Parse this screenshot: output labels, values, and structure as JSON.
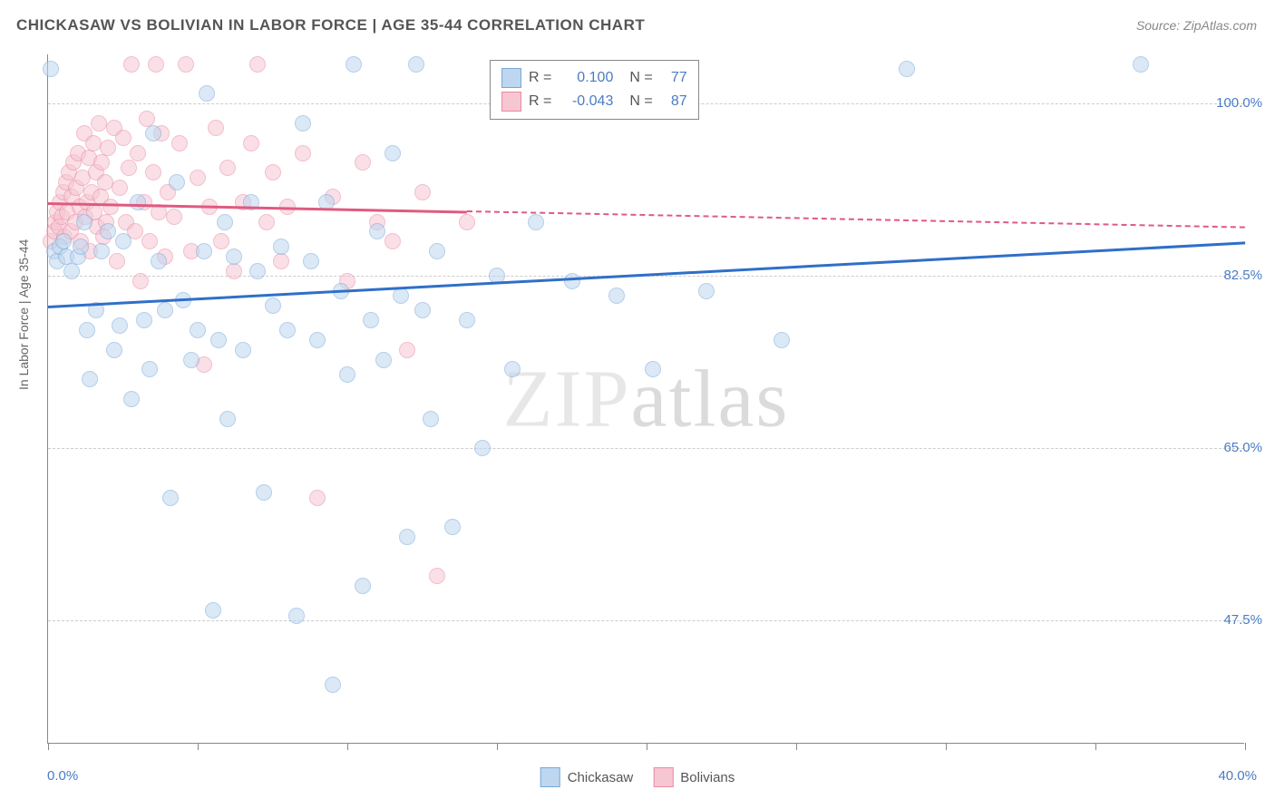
{
  "title": "CHICKASAW VS BOLIVIAN IN LABOR FORCE | AGE 35-44 CORRELATION CHART",
  "source": "Source: ZipAtlas.com",
  "y_axis_label": "In Labor Force | Age 35-44",
  "watermark_a": "ZIP",
  "watermark_b": "atlas",
  "chart": {
    "type": "scatter",
    "xlim": [
      0.0,
      40.0
    ],
    "ylim": [
      35.0,
      105.0
    ],
    "x_min_label": "0.0%",
    "x_max_label": "40.0%",
    "y_ticks": [
      {
        "v": 47.5,
        "label": "47.5%"
      },
      {
        "v": 65.0,
        "label": "65.0%"
      },
      {
        "v": 82.5,
        "label": "82.5%"
      },
      {
        "v": 100.0,
        "label": "100.0%"
      }
    ],
    "x_tick_positions": [
      0,
      5,
      10,
      15,
      20,
      25,
      30,
      35,
      40
    ],
    "background_color": "#ffffff",
    "grid_color": "#cccccc",
    "axis_color": "#888888",
    "marker_radius": 9,
    "marker_stroke_width": 1.5,
    "series": [
      {
        "name": "Chickasaw",
        "fill": "#bed6f0",
        "stroke": "#7aa8d8",
        "fill_opacity": 0.55,
        "trend": {
          "x1": 0,
          "y1": 79.5,
          "x2": 40,
          "y2": 86.0,
          "color": "#2f6fc9",
          "solid_until_x": 40
        },
        "points": [
          [
            0.1,
            103.5
          ],
          [
            0.2,
            85
          ],
          [
            0.3,
            84
          ],
          [
            0.4,
            85.5
          ],
          [
            0.5,
            86
          ],
          [
            0.6,
            84.5
          ],
          [
            0.8,
            83
          ],
          [
            1.0,
            84.5
          ],
          [
            1.1,
            85.5
          ],
          [
            1.2,
            88
          ],
          [
            1.3,
            77
          ],
          [
            1.4,
            72
          ],
          [
            1.6,
            79
          ],
          [
            1.8,
            85
          ],
          [
            2.0,
            87
          ],
          [
            2.2,
            75
          ],
          [
            2.4,
            77.5
          ],
          [
            2.5,
            86
          ],
          [
            2.8,
            70
          ],
          [
            3.0,
            90
          ],
          [
            3.2,
            78
          ],
          [
            3.4,
            73
          ],
          [
            3.5,
            97
          ],
          [
            3.7,
            84
          ],
          [
            3.9,
            79
          ],
          [
            4.1,
            60
          ],
          [
            4.3,
            92
          ],
          [
            4.5,
            80
          ],
          [
            4.8,
            74
          ],
          [
            5.0,
            77
          ],
          [
            5.2,
            85
          ],
          [
            5.3,
            101
          ],
          [
            5.5,
            48.5
          ],
          [
            5.7,
            76
          ],
          [
            5.9,
            88
          ],
          [
            6.0,
            68
          ],
          [
            6.2,
            84.5
          ],
          [
            6.5,
            75
          ],
          [
            6.8,
            90
          ],
          [
            7.0,
            83
          ],
          [
            7.2,
            60.5
          ],
          [
            7.5,
            79.5
          ],
          [
            7.8,
            85.5
          ],
          [
            8.0,
            77
          ],
          [
            8.3,
            48
          ],
          [
            8.5,
            98
          ],
          [
            8.8,
            84
          ],
          [
            9.0,
            76
          ],
          [
            9.3,
            90
          ],
          [
            9.5,
            41
          ],
          [
            9.8,
            81
          ],
          [
            10.0,
            72.5
          ],
          [
            10.2,
            104
          ],
          [
            10.5,
            51
          ],
          [
            10.8,
            78
          ],
          [
            11.0,
            87
          ],
          [
            11.2,
            74
          ],
          [
            11.5,
            95
          ],
          [
            11.8,
            80.5
          ],
          [
            12.0,
            56
          ],
          [
            12.3,
            104
          ],
          [
            12.5,
            79
          ],
          [
            12.8,
            68
          ],
          [
            13.0,
            85
          ],
          [
            13.5,
            57
          ],
          [
            14.0,
            78
          ],
          [
            14.5,
            65
          ],
          [
            15.0,
            82.5
          ],
          [
            15.5,
            73
          ],
          [
            16.3,
            88
          ],
          [
            17.5,
            82
          ],
          [
            19.0,
            80.5
          ],
          [
            20.2,
            73
          ],
          [
            22.0,
            81
          ],
          [
            24.5,
            76
          ],
          [
            28.7,
            103.5
          ],
          [
            36.5,
            104
          ]
        ]
      },
      {
        "name": "Bolivians",
        "fill": "#f6c6d2",
        "stroke": "#e88ba3",
        "fill_opacity": 0.55,
        "trend": {
          "x1": 0,
          "y1": 90.0,
          "x2": 40,
          "y2": 87.5,
          "color": "#e05a80",
          "solid_until_x": 14
        },
        "points": [
          [
            0.1,
            86
          ],
          [
            0.2,
            87
          ],
          [
            0.25,
            88
          ],
          [
            0.3,
            89
          ],
          [
            0.35,
            87.5
          ],
          [
            0.4,
            90
          ],
          [
            0.45,
            88.5
          ],
          [
            0.5,
            91
          ],
          [
            0.55,
            86.5
          ],
          [
            0.6,
            92
          ],
          [
            0.65,
            89
          ],
          [
            0.7,
            93
          ],
          [
            0.75,
            87
          ],
          [
            0.8,
            90.5
          ],
          [
            0.85,
            94
          ],
          [
            0.9,
            88
          ],
          [
            0.95,
            91.5
          ],
          [
            1.0,
            95
          ],
          [
            1.05,
            89.5
          ],
          [
            1.1,
            86
          ],
          [
            1.15,
            92.5
          ],
          [
            1.2,
            97
          ],
          [
            1.25,
            88.5
          ],
          [
            1.3,
            90
          ],
          [
            1.35,
            94.5
          ],
          [
            1.4,
            85
          ],
          [
            1.45,
            91
          ],
          [
            1.5,
            96
          ],
          [
            1.55,
            89
          ],
          [
            1.6,
            93
          ],
          [
            1.65,
            87.5
          ],
          [
            1.7,
            98
          ],
          [
            1.75,
            90.5
          ],
          [
            1.8,
            94
          ],
          [
            1.85,
            86.5
          ],
          [
            1.9,
            92
          ],
          [
            1.95,
            88
          ],
          [
            2.0,
            95.5
          ],
          [
            2.1,
            89.5
          ],
          [
            2.2,
            97.5
          ],
          [
            2.3,
            84
          ],
          [
            2.4,
            91.5
          ],
          [
            2.5,
            96.5
          ],
          [
            2.6,
            88
          ],
          [
            2.7,
            93.5
          ],
          [
            2.8,
            104
          ],
          [
            2.9,
            87
          ],
          [
            3.0,
            95
          ],
          [
            3.1,
            82
          ],
          [
            3.2,
            90
          ],
          [
            3.3,
            98.5
          ],
          [
            3.4,
            86
          ],
          [
            3.5,
            93
          ],
          [
            3.6,
            104
          ],
          [
            3.7,
            89
          ],
          [
            3.8,
            97
          ],
          [
            3.9,
            84.5
          ],
          [
            4.0,
            91
          ],
          [
            4.2,
            88.5
          ],
          [
            4.4,
            96
          ],
          [
            4.6,
            104
          ],
          [
            4.8,
            85
          ],
          [
            5.0,
            92.5
          ],
          [
            5.2,
            73.5
          ],
          [
            5.4,
            89.5
          ],
          [
            5.6,
            97.5
          ],
          [
            5.8,
            86
          ],
          [
            6.0,
            93.5
          ],
          [
            6.2,
            83
          ],
          [
            6.5,
            90
          ],
          [
            6.8,
            96
          ],
          [
            7.0,
            104
          ],
          [
            7.3,
            88
          ],
          [
            7.5,
            93
          ],
          [
            7.8,
            84
          ],
          [
            8.0,
            89.5
          ],
          [
            8.5,
            95
          ],
          [
            9.0,
            60
          ],
          [
            9.5,
            90.5
          ],
          [
            10.0,
            82
          ],
          [
            10.5,
            94
          ],
          [
            11.0,
            88
          ],
          [
            11.5,
            86
          ],
          [
            12.0,
            75
          ],
          [
            12.5,
            91
          ],
          [
            13.0,
            52
          ],
          [
            14.0,
            88
          ]
        ]
      }
    ],
    "stats": [
      {
        "swatch_fill": "#bed6f0",
        "swatch_stroke": "#7aa8d8",
        "r_label": "R =",
        "r_value": "0.100",
        "n_label": "N =",
        "n_value": "77"
      },
      {
        "swatch_fill": "#f6c6d2",
        "swatch_stroke": "#e88ba3",
        "r_label": "R =",
        "r_value": "-0.043",
        "n_label": "N =",
        "n_value": "87"
      }
    ],
    "legend": [
      {
        "label": "Chickasaw",
        "fill": "#bed6f0",
        "stroke": "#7aa8d8"
      },
      {
        "label": "Bolivians",
        "fill": "#f6c6d2",
        "stroke": "#e88ba3"
      }
    ]
  }
}
